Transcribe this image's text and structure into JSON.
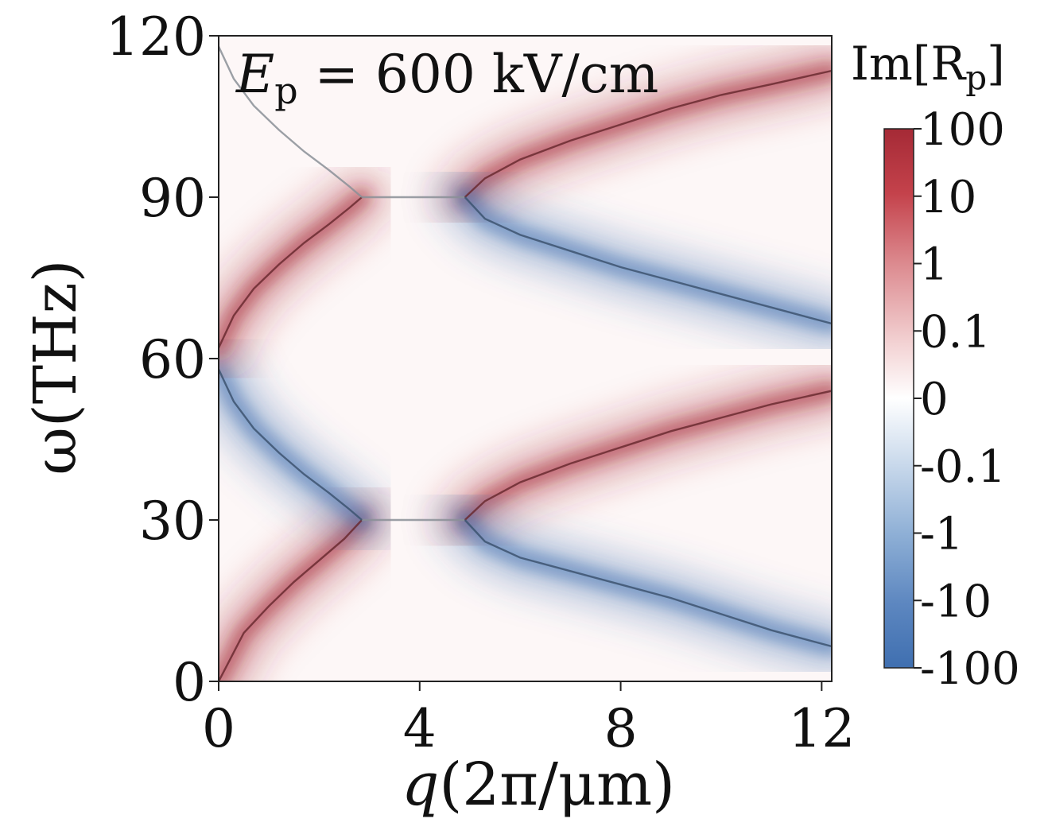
{
  "chart_data": {
    "type": "heatmap",
    "annotation": {
      "symbol": "E",
      "subscript": "p",
      "rest": " = 600 kV/cm"
    },
    "xlabel": {
      "italic": "q",
      "rest": "(2π/μm)"
    },
    "ylabel": "ω(THz)",
    "xlim": [
      0,
      12.2
    ],
    "ylim": [
      0,
      120
    ],
    "xticks": [
      0,
      4,
      8,
      12
    ],
    "xtick_labels": [
      "0",
      "4",
      "8",
      "12"
    ],
    "yticks": [
      0,
      30,
      60,
      90,
      120
    ],
    "ytick_labels": [
      "0",
      "30",
      "60",
      "90",
      "120"
    ],
    "colorbar": {
      "title": "Im[R",
      "title_sub": "p",
      "title_end": "]",
      "scale": "symlog",
      "ticks": [
        "100",
        "10",
        "1",
        "0.1",
        "0",
        "-0.1",
        "-1",
        "-10",
        "-100"
      ],
      "colors": {
        "positive": "#a52a36",
        "zero": "#ffffff",
        "negative": "#3f6fb0"
      }
    },
    "curves": [
      {
        "name": "lower-upward",
        "sign": "positive",
        "points": [
          [
            0,
            0
          ],
          [
            0.5,
            9
          ],
          [
            1,
            14
          ],
          [
            1.5,
            18.5
          ],
          [
            2,
            22.5
          ],
          [
            2.5,
            26.5
          ],
          [
            2.85,
            30
          ]
        ]
      },
      {
        "name": "lower-plateau",
        "sign": "neutral",
        "points": [
          [
            2.85,
            30
          ],
          [
            4.9,
            30
          ]
        ]
      },
      {
        "name": "lower-upper-branch",
        "sign": "positive",
        "points": [
          [
            4.9,
            30
          ],
          [
            5.3,
            33.5
          ],
          [
            6,
            37
          ],
          [
            7,
            40.5
          ],
          [
            8,
            43.5
          ],
          [
            9,
            46.5
          ],
          [
            10,
            49
          ],
          [
            11,
            51.5
          ],
          [
            12.2,
            54
          ]
        ]
      },
      {
        "name": "lower-down-branch",
        "sign": "negative",
        "points": [
          [
            4.9,
            30
          ],
          [
            5.3,
            26
          ],
          [
            6,
            23
          ],
          [
            7,
            20.5
          ],
          [
            8,
            18
          ],
          [
            9,
            15.5
          ],
          [
            10,
            12.5
          ],
          [
            11,
            9.5
          ],
          [
            12.2,
            6.5
          ]
        ]
      },
      {
        "name": "middle-descending",
        "sign": "negative",
        "points": [
          [
            0,
            58
          ],
          [
            0.3,
            52
          ],
          [
            0.7,
            47
          ],
          [
            1.2,
            42.5
          ],
          [
            1.7,
            38.5
          ],
          [
            2.2,
            35
          ],
          [
            2.6,
            32
          ],
          [
            2.85,
            30
          ]
        ]
      },
      {
        "name": "middle-ascending",
        "sign": "positive",
        "points": [
          [
            0,
            62
          ],
          [
            0.3,
            68
          ],
          [
            0.7,
            73
          ],
          [
            1.2,
            77.5
          ],
          [
            1.7,
            81.5
          ],
          [
            2.2,
            85
          ],
          [
            2.6,
            88
          ],
          [
            2.85,
            90
          ]
        ]
      },
      {
        "name": "upper-plateau",
        "sign": "neutral",
        "points": [
          [
            2.85,
            90
          ],
          [
            4.9,
            90
          ]
        ]
      },
      {
        "name": "upper-upper-branch",
        "sign": "positive",
        "points": [
          [
            4.9,
            90
          ],
          [
            5.3,
            93.5
          ],
          [
            6,
            97
          ],
          [
            7,
            100.5
          ],
          [
            8,
            103.5
          ],
          [
            9,
            106.5
          ],
          [
            10,
            109
          ],
          [
            11,
            111
          ],
          [
            12.2,
            113.5
          ]
        ]
      },
      {
        "name": "upper-down-branch",
        "sign": "negative",
        "points": [
          [
            4.9,
            90
          ],
          [
            5.3,
            86
          ],
          [
            6,
            83
          ],
          [
            7,
            80
          ],
          [
            8,
            77
          ],
          [
            9,
            74.5
          ],
          [
            10,
            72
          ],
          [
            11,
            69.5
          ],
          [
            12.2,
            66.5
          ]
        ]
      },
      {
        "name": "top-descending",
        "sign": "neutral",
        "points": [
          [
            0,
            118
          ],
          [
            0.3,
            112
          ],
          [
            0.7,
            107
          ],
          [
            1.2,
            102.5
          ],
          [
            1.7,
            98.5
          ],
          [
            2.2,
            95
          ],
          [
            2.6,
            92
          ],
          [
            2.85,
            90
          ]
        ]
      }
    ],
    "grid": false,
    "legend": "colorbar-right"
  }
}
